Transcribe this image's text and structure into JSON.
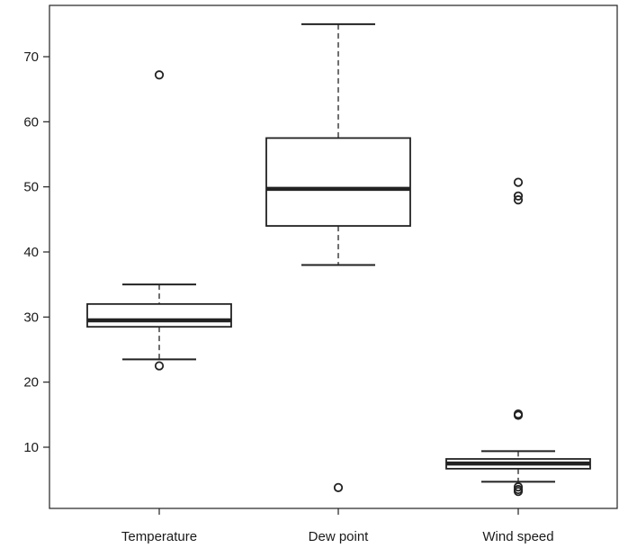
{
  "chart_data": {
    "type": "boxplot",
    "title": "",
    "xlabel": "",
    "ylabel": "",
    "ylim": [
      1,
      80
    ],
    "yticks": [
      10,
      20,
      30,
      40,
      50,
      60,
      70
    ],
    "grid": false,
    "legend": "none",
    "categories": [
      "Temperature",
      "Dew point",
      "Wind speed"
    ],
    "boxes": [
      {
        "name": "Temperature",
        "whisker_low": 23.5,
        "q1": 28.5,
        "median": 29.5,
        "q3": 32,
        "whisker_high": 35,
        "outliers": [
          67.2,
          22.5
        ]
      },
      {
        "name": "Dew point",
        "whisker_low": 38,
        "q1": 44,
        "median": 49.7,
        "q3": 57.5,
        "whisker_high": 75,
        "outliers": [
          3.8
        ]
      },
      {
        "name": "Wind speed",
        "whisker_low": 4.7,
        "q1": 6.7,
        "median": 7.5,
        "q3": 8.2,
        "whisker_high": 9.4,
        "outliers": [
          50.7,
          48.6,
          48.0,
          15.1,
          14.9,
          3.9,
          3.5,
          3.2
        ]
      }
    ],
    "colors": {
      "stroke": "#222222",
      "background": "#ffffff"
    }
  }
}
